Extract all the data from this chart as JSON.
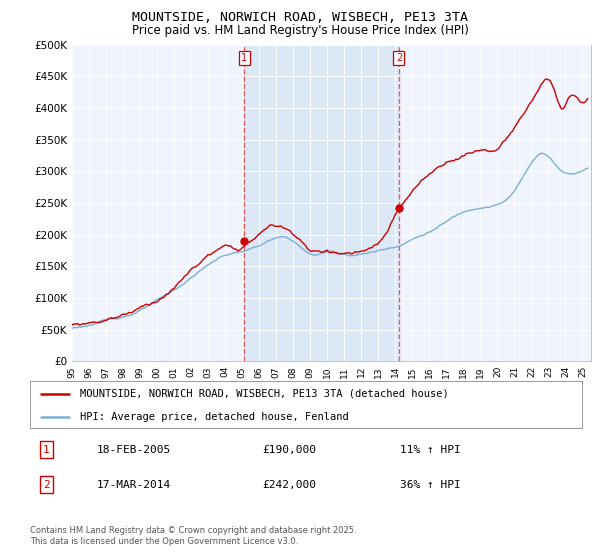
{
  "title": "MOUNTSIDE, NORWICH ROAD, WISBECH, PE13 3TA",
  "subtitle": "Price paid vs. HM Land Registry's House Price Index (HPI)",
  "ytick_values": [
    0,
    50000,
    100000,
    150000,
    200000,
    250000,
    300000,
    350000,
    400000,
    450000,
    500000
  ],
  "ylim": [
    0,
    500000
  ],
  "xlim_start": 1995.0,
  "xlim_end": 2025.5,
  "sale1_x": 2005.13,
  "sale1_y": 190000,
  "sale2_x": 2014.21,
  "sale2_y": 242000,
  "vline1_x": 2005.13,
  "vline2_x": 2014.21,
  "line_red": "#cc0000",
  "line_blue": "#7ab0d4",
  "vline_color": "#dd4444",
  "bg_color": "#f0f4ff",
  "bg_shade_color": "#dce8f5",
  "legend_label_red": "MOUNTSIDE, NORWICH ROAD, WISBECH, PE13 3TA (detached house)",
  "legend_label_blue": "HPI: Average price, detached house, Fenland",
  "sale1_label": "1",
  "sale2_label": "2",
  "annotation1_date": "18-FEB-2005",
  "annotation1_price": "£190,000",
  "annotation1_hpi": "11% ↑ HPI",
  "annotation2_date": "17-MAR-2014",
  "annotation2_price": "£242,000",
  "annotation2_hpi": "36% ↑ HPI",
  "footer": "Contains HM Land Registry data © Crown copyright and database right 2025.\nThis data is licensed under the Open Government Licence v3.0.",
  "title_fontsize": 9.5,
  "subtitle_fontsize": 8.5,
  "tick_fontsize": 7.5,
  "legend_fontsize": 7.5,
  "annotation_fontsize": 8,
  "footer_fontsize": 6.0
}
